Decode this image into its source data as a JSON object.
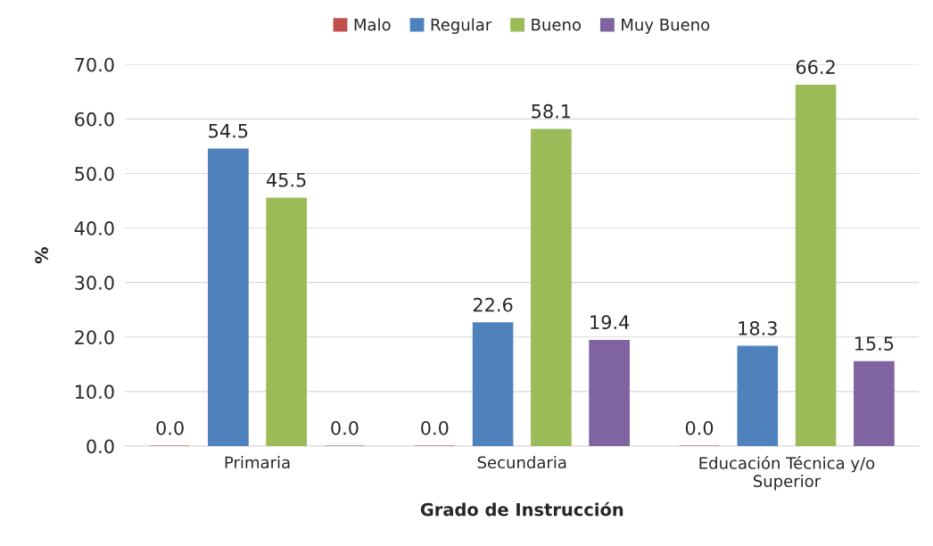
{
  "chart_data": {
    "type": "bar",
    "xlabel": "Grado de Instrucción",
    "ylabel": "%",
    "categories": [
      "Primaria",
      "Secundaria",
      "Educación Técnica y/o\nSuperior"
    ],
    "series": [
      {
        "name": "Malo",
        "color": "#c0504d",
        "values": [
          0,
          0,
          0
        ],
        "value_labels": [
          "0.0",
          "0.0",
          "0.0"
        ]
      },
      {
        "name": "Regular",
        "color": "#4f81bd",
        "values": [
          54.5,
          22.6,
          18.3
        ],
        "value_labels": [
          "54.5",
          "22.6",
          "18.3"
        ]
      },
      {
        "name": "Bueno",
        "color": "#9bbb59",
        "values": [
          45.5,
          58.1,
          66.2
        ],
        "value_labels": [
          "45.5",
          "58.1",
          "66.2"
        ]
      },
      {
        "name": "Muy Bueno",
        "color": "#8064a2",
        "values": [
          0,
          19.4,
          15.5
        ],
        "value_labels": [
          "0.0",
          "19.4",
          "15.5"
        ]
      }
    ],
    "ylim": [
      0,
      70
    ],
    "yticks": [
      {
        "value": 0,
        "label": "0.0"
      },
      {
        "value": 10,
        "label": "10.0"
      },
      {
        "value": 20,
        "label": "20.0"
      },
      {
        "value": 30,
        "label": "30.0"
      },
      {
        "value": 40,
        "label": "40.0"
      },
      {
        "value": 50,
        "label": "50.0"
      },
      {
        "value": 60,
        "label": "60.0"
      },
      {
        "value": 70,
        "label": "70.0"
      }
    ],
    "grid": "y",
    "legend": "top"
  }
}
